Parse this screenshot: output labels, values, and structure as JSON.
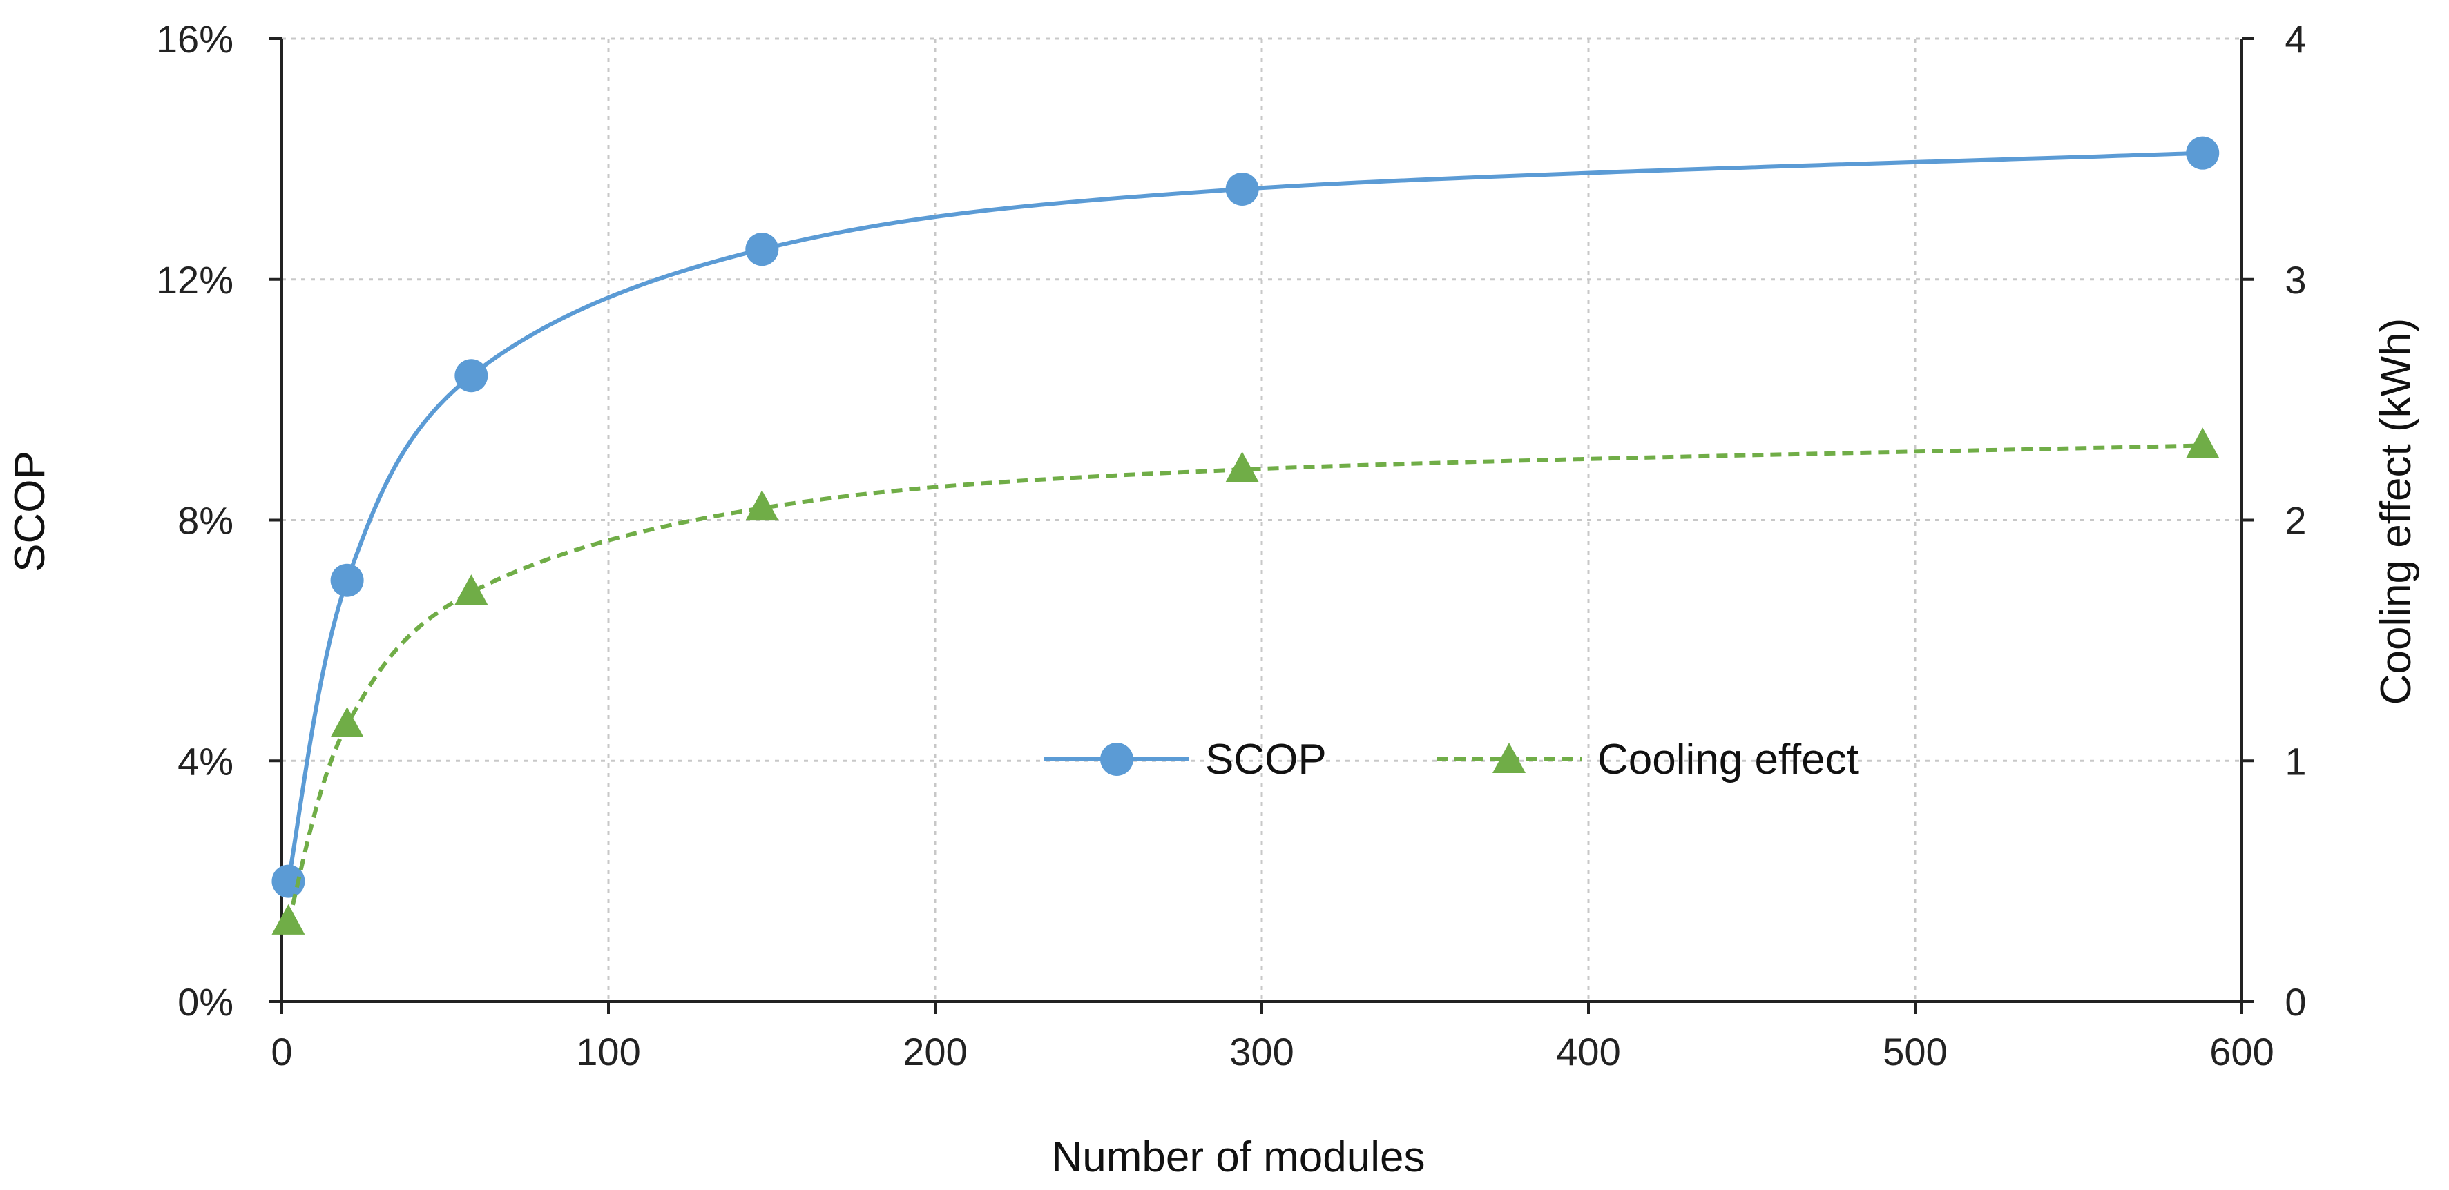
{
  "chart_data": {
    "type": "line",
    "title": "",
    "xlabel": "Number of modules",
    "ylabel_left": "SCOP",
    "ylabel_right": "Cooling effect (kWh)",
    "xlim": [
      0,
      600
    ],
    "ylim_left": [
      0,
      0.16
    ],
    "ylim_right": [
      0,
      4
    ],
    "x_ticks": [
      0,
      100,
      200,
      300,
      400,
      500,
      600
    ],
    "x_tick_labels": [
      "0",
      "100",
      "200",
      "300",
      "400",
      "500",
      "600"
    ],
    "y_left_ticks": [
      0,
      0.04,
      0.08,
      0.12,
      0.16
    ],
    "y_left_tick_labels": [
      "0%",
      "4%",
      "8%",
      "12%",
      "16%"
    ],
    "y_right_ticks": [
      0,
      1,
      2,
      3,
      4
    ],
    "y_right_tick_labels": [
      "0",
      "1",
      "2",
      "3",
      "4"
    ],
    "grid": true,
    "legend_position": "center-right",
    "series": [
      {
        "name": "SCOP",
        "axis": "left",
        "color": "#5B9BD5",
        "marker": "circle",
        "line_style": "solid",
        "x": [
          2,
          20,
          58,
          147,
          294,
          588
        ],
        "values": [
          0.02,
          0.07,
          0.104,
          0.125,
          0.135,
          0.141
        ]
      },
      {
        "name": "Cooling effect",
        "axis": "right",
        "color": "#70AD47",
        "marker": "triangle",
        "line_style": "dashed",
        "x": [
          2,
          20,
          58,
          147,
          294,
          588
        ],
        "values": [
          0.33,
          1.15,
          1.7,
          2.05,
          2.21,
          2.31
        ]
      }
    ]
  }
}
